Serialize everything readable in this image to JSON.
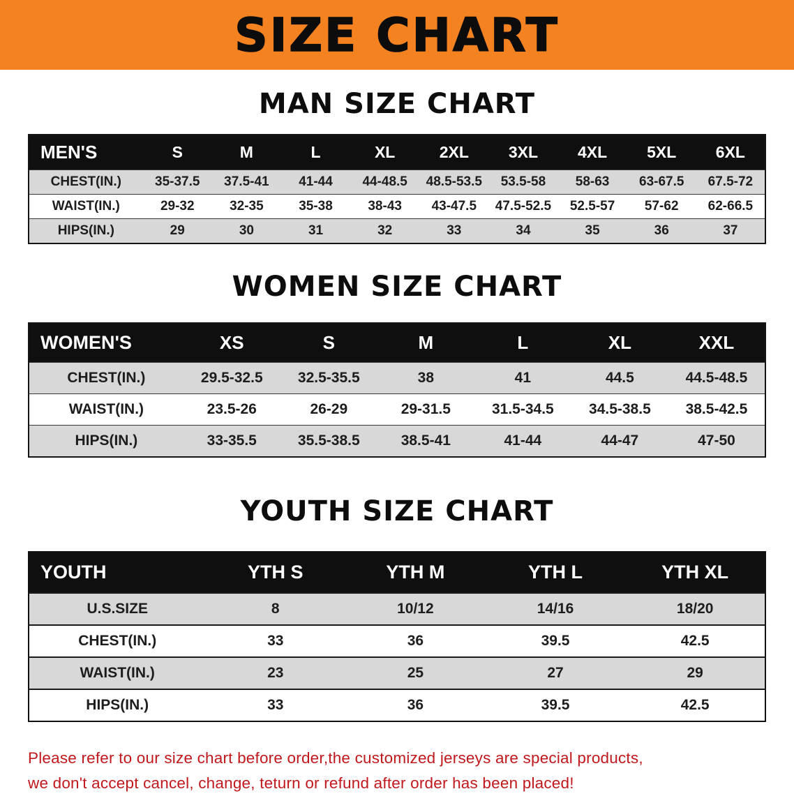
{
  "banner": {
    "title": "SIZE CHART"
  },
  "sections": {
    "men": {
      "heading": "MAN SIZE CHART",
      "table": {
        "header": [
          "MEN'S",
          "S",
          "M",
          "L",
          "XL",
          "2XL",
          "3XL",
          "4XL",
          "5XL",
          "6XL"
        ],
        "rows": [
          [
            "CHEST(IN.)",
            "35-37.5",
            "37.5-41",
            "41-44",
            "44-48.5",
            "48.5-53.5",
            "53.5-58",
            "58-63",
            "63-67.5",
            "67.5-72"
          ],
          [
            "WAIST(IN.)",
            "29-32",
            "32-35",
            "35-38",
            "38-43",
            "43-47.5",
            "47.5-52.5",
            "52.5-57",
            "57-62",
            "62-66.5"
          ],
          [
            "HIPS(IN.)",
            "29",
            "30",
            "31",
            "32",
            "33",
            "34",
            "35",
            "36",
            "37"
          ]
        ]
      }
    },
    "women": {
      "heading": "WOMEN SIZE CHART",
      "table": {
        "header": [
          "WOMEN'S",
          "XS",
          "S",
          "M",
          "L",
          "XL",
          "XXL"
        ],
        "rows": [
          [
            "CHEST(IN.)",
            "29.5-32.5",
            "32.5-35.5",
            "38",
            "41",
            "44.5",
            "44.5-48.5"
          ],
          [
            "WAIST(IN.)",
            "23.5-26",
            "26-29",
            "29-31.5",
            "31.5-34.5",
            "34.5-38.5",
            "38.5-42.5"
          ],
          [
            "HIPS(IN.)",
            "33-35.5",
            "35.5-38.5",
            "38.5-41",
            "41-44",
            "44-47",
            "47-50"
          ]
        ]
      }
    },
    "youth": {
      "heading": "YOUTH SIZE CHART",
      "table": {
        "header": [
          "YOUTH",
          "YTH S",
          "YTH M",
          "YTH L",
          "YTH XL"
        ],
        "rows": [
          [
            "U.S.SIZE",
            "8",
            "10/12",
            "14/16",
            "18/20"
          ],
          [
            "CHEST(IN.)",
            "33",
            "36",
            "39.5",
            "42.5"
          ],
          [
            "WAIST(IN.)",
            "23",
            "25",
            "27",
            "29"
          ],
          [
            "HIPS(IN.)",
            "33",
            "36",
            "39.5",
            "42.5"
          ]
        ]
      }
    }
  },
  "footer": {
    "line1": "Please refer to our size chart before order,the customized jerseys are special products,",
    "line2": "we don't accept cancel, change, teturn or refund after order has been placed!"
  },
  "colors": {
    "banner-orange": "#f58220",
    "header-black": "#0f0f0f",
    "row-gray": "#d8d8d8",
    "notice-red": "#c0181c"
  }
}
